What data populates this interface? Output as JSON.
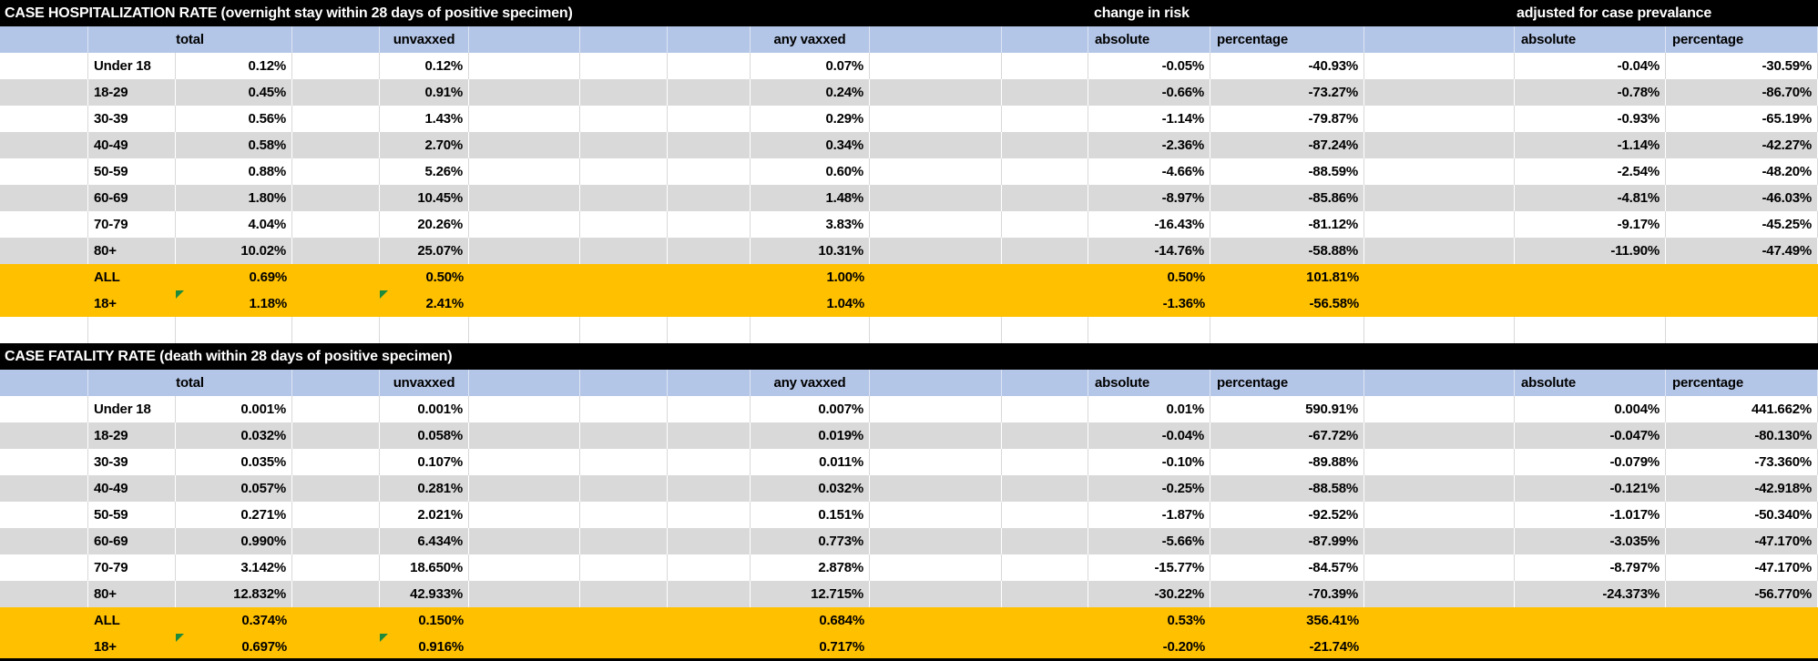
{
  "colors": {
    "title_bar_fill": "#000000",
    "title_text": "#ffffff",
    "column_header_fill": "#b4c6e7",
    "stripe_gray": "#d9d9d9",
    "summary_highlight": "#ffc000",
    "error_flag_green": "#1e8a3c"
  },
  "tables": [
    {
      "title": "CASE HOSPITALIZATION RATE (overnight stay within 28 days of positive specimen)",
      "group_headers": {
        "risk": "change in risk",
        "adjusted": "adjusted for case prevalance"
      },
      "columns": {
        "total": "total",
        "unvaxxed": "unvaxxed",
        "any_vaxxed": "any vaxxed",
        "risk_absolute": "absolute",
        "risk_percentage": "percentage",
        "adj_absolute": "absolute",
        "adj_percentage": "percentage"
      },
      "rows": [
        {
          "label": "Under 18",
          "total": "0.12%",
          "unvaxxed": "0.12%",
          "any_vaxxed": "0.07%",
          "risk_abs": "-0.05%",
          "risk_pct": "-40.93%",
          "adj_abs": "-0.04%",
          "adj_pct": "-30.59%",
          "flags": false
        },
        {
          "label": "18-29",
          "total": "0.45%",
          "unvaxxed": "0.91%",
          "any_vaxxed": "0.24%",
          "risk_abs": "-0.66%",
          "risk_pct": "-73.27%",
          "adj_abs": "-0.78%",
          "adj_pct": "-86.70%",
          "flags": false
        },
        {
          "label": "30-39",
          "total": "0.56%",
          "unvaxxed": "1.43%",
          "any_vaxxed": "0.29%",
          "risk_abs": "-1.14%",
          "risk_pct": "-79.87%",
          "adj_abs": "-0.93%",
          "adj_pct": "-65.19%",
          "flags": false
        },
        {
          "label": "40-49",
          "total": "0.58%",
          "unvaxxed": "2.70%",
          "any_vaxxed": "0.34%",
          "risk_abs": "-2.36%",
          "risk_pct": "-87.24%",
          "adj_abs": "-1.14%",
          "adj_pct": "-42.27%",
          "flags": false
        },
        {
          "label": "50-59",
          "total": "0.88%",
          "unvaxxed": "5.26%",
          "any_vaxxed": "0.60%",
          "risk_abs": "-4.66%",
          "risk_pct": "-88.59%",
          "adj_abs": "-2.54%",
          "adj_pct": "-48.20%",
          "flags": false
        },
        {
          "label": "60-69",
          "total": "1.80%",
          "unvaxxed": "10.45%",
          "any_vaxxed": "1.48%",
          "risk_abs": "-8.97%",
          "risk_pct": "-85.86%",
          "adj_abs": "-4.81%",
          "adj_pct": "-46.03%",
          "flags": false
        },
        {
          "label": "70-79",
          "total": "4.04%",
          "unvaxxed": "20.26%",
          "any_vaxxed": "3.83%",
          "risk_abs": "-16.43%",
          "risk_pct": "-81.12%",
          "adj_abs": "-9.17%",
          "adj_pct": "-45.25%",
          "flags": false
        },
        {
          "label": "80+",
          "total": "10.02%",
          "unvaxxed": "25.07%",
          "any_vaxxed": "10.31%",
          "risk_abs": "-14.76%",
          "risk_pct": "-58.88%",
          "adj_abs": "-11.90%",
          "adj_pct": "-47.49%",
          "flags": false
        },
        {
          "label": "ALL",
          "total": "0.69%",
          "unvaxxed": "0.50%",
          "any_vaxxed": "1.00%",
          "risk_abs": "0.50%",
          "risk_pct": "101.81%",
          "adj_abs": "",
          "adj_pct": "",
          "flags": false
        },
        {
          "label": "18+",
          "total": "1.18%",
          "unvaxxed": "2.41%",
          "any_vaxxed": "1.04%",
          "risk_abs": "-1.36%",
          "risk_pct": "-56.58%",
          "adj_abs": "",
          "adj_pct": "",
          "flags": true
        }
      ]
    },
    {
      "title": "CASE FATALITY RATE (death within 28 days of positive specimen)",
      "columns": {
        "total": "total",
        "unvaxxed": "unvaxxed",
        "any_vaxxed": "any vaxxed",
        "risk_absolute": "absolute",
        "risk_percentage": "percentage",
        "adj_absolute": "absolute",
        "adj_percentage": "percentage"
      },
      "rows": [
        {
          "label": "Under 18",
          "total": "0.001%",
          "unvaxxed": "0.001%",
          "any_vaxxed": "0.007%",
          "risk_abs": "0.01%",
          "risk_pct": "590.91%",
          "adj_abs": "0.004%",
          "adj_pct": "441.662%",
          "flags": false
        },
        {
          "label": "18-29",
          "total": "0.032%",
          "unvaxxed": "0.058%",
          "any_vaxxed": "0.019%",
          "risk_abs": "-0.04%",
          "risk_pct": "-67.72%",
          "adj_abs": "-0.047%",
          "adj_pct": "-80.130%",
          "flags": false
        },
        {
          "label": "30-39",
          "total": "0.035%",
          "unvaxxed": "0.107%",
          "any_vaxxed": "0.011%",
          "risk_abs": "-0.10%",
          "risk_pct": "-89.88%",
          "adj_abs": "-0.079%",
          "adj_pct": "-73.360%",
          "flags": false
        },
        {
          "label": "40-49",
          "total": "0.057%",
          "unvaxxed": "0.281%",
          "any_vaxxed": "0.032%",
          "risk_abs": "-0.25%",
          "risk_pct": "-88.58%",
          "adj_abs": "-0.121%",
          "adj_pct": "-42.918%",
          "flags": false
        },
        {
          "label": "50-59",
          "total": "0.271%",
          "unvaxxed": "2.021%",
          "any_vaxxed": "0.151%",
          "risk_abs": "-1.87%",
          "risk_pct": "-92.52%",
          "adj_abs": "-1.017%",
          "adj_pct": "-50.340%",
          "flags": false
        },
        {
          "label": "60-69",
          "total": "0.990%",
          "unvaxxed": "6.434%",
          "any_vaxxed": "0.773%",
          "risk_abs": "-5.66%",
          "risk_pct": "-87.99%",
          "adj_abs": "-3.035%",
          "adj_pct": "-47.170%",
          "flags": false
        },
        {
          "label": "70-79",
          "total": "3.142%",
          "unvaxxed": "18.650%",
          "any_vaxxed": "2.878%",
          "risk_abs": "-15.77%",
          "risk_pct": "-84.57%",
          "adj_abs": "-8.797%",
          "adj_pct": "-47.170%",
          "flags": false
        },
        {
          "label": "80+",
          "total": "12.832%",
          "unvaxxed": "42.933%",
          "any_vaxxed": "12.715%",
          "risk_abs": "-30.22%",
          "risk_pct": "-70.39%",
          "adj_abs": "-24.373%",
          "adj_pct": "-56.770%",
          "flags": false
        },
        {
          "label": "ALL",
          "total": "0.374%",
          "unvaxxed": "0.150%",
          "any_vaxxed": "0.684%",
          "risk_abs": "0.53%",
          "risk_pct": "356.41%",
          "adj_abs": "",
          "adj_pct": "",
          "flags": false
        },
        {
          "label": "18+",
          "total": "0.697%",
          "unvaxxed": "0.916%",
          "any_vaxxed": "0.717%",
          "risk_abs": "-0.20%",
          "risk_pct": "-21.74%",
          "adj_abs": "",
          "adj_pct": "",
          "flags": true
        }
      ]
    }
  ]
}
